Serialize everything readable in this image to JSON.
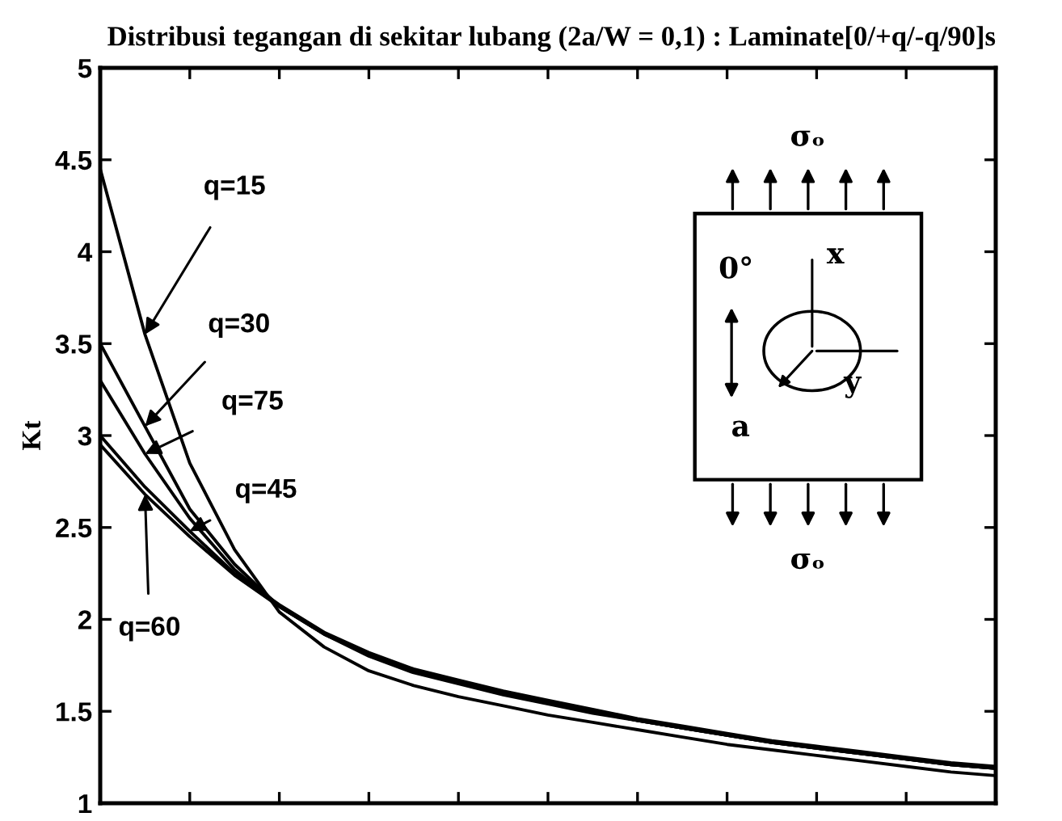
{
  "chart_data": {
    "type": "line",
    "title": "Distribusi tegangan di sekitar lubang (2a/W = 0,1) : Laminate[0/+q/-q/90]s",
    "ylabel": "Kt",
    "categories": [
      null,
      null,
      null,
      null,
      null,
      null,
      null,
      null,
      null,
      null,
      null,
      null,
      null,
      null,
      null,
      null,
      null,
      null,
      null,
      null,
      null
    ],
    "series": [
      {
        "color": "#000000",
        "values": [
          4.45,
          3.55,
          2.85,
          2.38,
          2.04,
          1.85,
          1.72,
          1.64,
          1.58,
          1.53,
          1.48,
          1.44,
          1.4,
          1.36,
          1.32,
          1.29,
          1.26,
          1.23,
          1.2,
          1.17,
          1.15
        ]
      },
      {
        "color": "#000000",
        "values": [
          3.5,
          3.05,
          2.6,
          2.3,
          2.07,
          1.92,
          1.81,
          1.72,
          1.66,
          1.6,
          1.55,
          1.5,
          1.45,
          1.41,
          1.37,
          1.33,
          1.3,
          1.27,
          1.24,
          1.21,
          1.19
        ]
      },
      {
        "color": "#000000",
        "values": [
          3.3,
          2.9,
          2.55,
          2.27,
          2.07,
          1.92,
          1.8,
          1.71,
          1.65,
          1.59,
          1.54,
          1.49,
          1.45,
          1.41,
          1.37,
          1.33,
          1.3,
          1.27,
          1.24,
          1.21,
          1.19
        ]
      },
      {
        "color": "#000000",
        "values": [
          3.0,
          2.72,
          2.48,
          2.25,
          2.08,
          1.93,
          1.82,
          1.73,
          1.67,
          1.61,
          1.56,
          1.51,
          1.46,
          1.42,
          1.38,
          1.34,
          1.31,
          1.28,
          1.25,
          1.22,
          1.2
        ]
      },
      {
        "color": "#000000",
        "values": [
          2.95,
          2.68,
          2.45,
          2.24,
          2.07,
          1.92,
          1.81,
          1.72,
          1.66,
          1.6,
          1.55,
          1.5,
          1.45,
          1.41,
          1.37,
          1.33,
          1.3,
          1.27,
          1.24,
          1.21,
          1.19
        ]
      }
    ],
    "annotations": [
      "q=15",
      "q=30",
      "q=75",
      "q=45",
      "q=60",
      "σₒ",
      "σₒ",
      "x",
      "y",
      "0°",
      "a"
    ],
    "ylim": [
      1,
      5
    ],
    "yticks": [
      1,
      1.5,
      2,
      2.5,
      3,
      3.5,
      4,
      4.5,
      5
    ],
    "tick_labels": "y",
    "grid": false,
    "legend": false,
    "marker": "none",
    "line_style": "solid"
  }
}
